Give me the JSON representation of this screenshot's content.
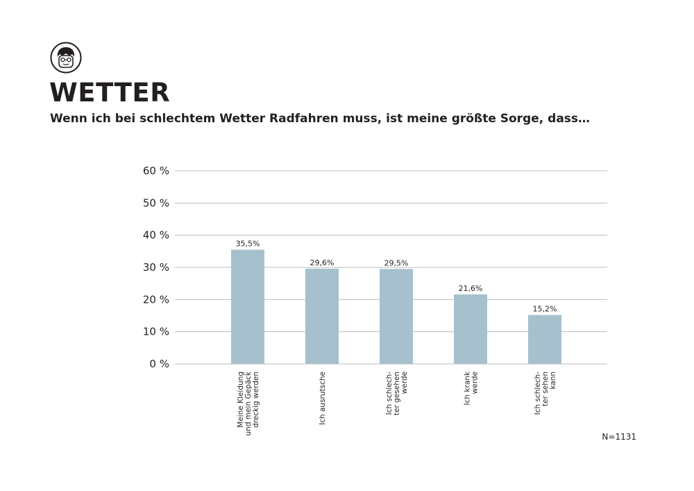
{
  "header": {
    "logo_icon": "cyclist-face-icon",
    "title": "WETTER",
    "subtitle": "Wenn ich bei schlechtem Wetter Radfahren muss, ist meine größte Sorge, dass…"
  },
  "note": "N=1131",
  "colors": {
    "bar": "#a7c0cd",
    "grid": "#bdbdbd",
    "text": "#231f20"
  },
  "chart_data": {
    "type": "bar",
    "title": "",
    "xlabel": "",
    "ylabel": "",
    "ylim": [
      0,
      60
    ],
    "yticks": [
      0,
      10,
      20,
      30,
      40,
      50,
      60
    ],
    "ytick_labels": [
      "0 %",
      "10 %",
      "20 %",
      "30 %",
      "40 %",
      "50 %",
      "60 %"
    ],
    "grid": true,
    "categories": [
      [
        "Meine  Kleidung",
        "und mein Gepäck",
        "dreckig werden"
      ],
      [
        "Ich ausrutsche"
      ],
      [
        "Ich schlech-",
        "ter gesehen",
        "werde"
      ],
      [
        "Ich krank",
        "werde"
      ],
      [
        "Ich schlech-",
        "ter sehen",
        "kann"
      ]
    ],
    "values": [
      35.5,
      29.6,
      29.5,
      21.6,
      15.2
    ],
    "value_labels": [
      "35,5%",
      "29,6%",
      "29,5%",
      "21,6%",
      "15,2%"
    ]
  }
}
